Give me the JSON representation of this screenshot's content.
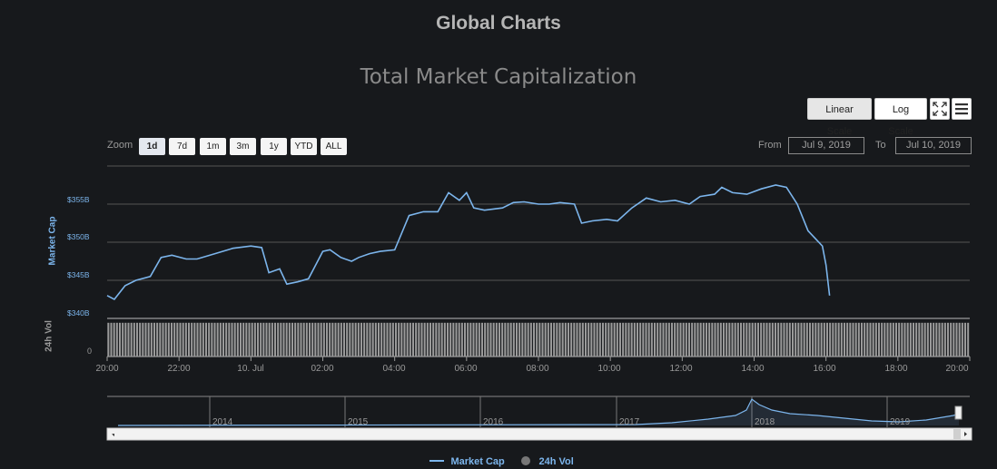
{
  "header": {
    "title": "Global Charts"
  },
  "chart_title": "Total Market Capitalization",
  "toolbar": {
    "linear_scale": "Linear Scale",
    "log_scale": "Log Scale",
    "fullscreen_icon": "fullscreen-icon",
    "menu_icon": "hamburger-menu-icon"
  },
  "zoom": {
    "label": "Zoom",
    "buttons": [
      "1d",
      "7d",
      "1m",
      "3m",
      "1y",
      "YTD",
      "ALL"
    ],
    "selected": "1d"
  },
  "range": {
    "from_label": "From",
    "from_value": "Jul 9, 2019",
    "to_label": "To",
    "to_value": "Jul 10, 2019"
  },
  "navigator": {
    "years": [
      "2014",
      "2015",
      "2016",
      "2017",
      "2018",
      "2019"
    ]
  },
  "legend": {
    "market_cap": "Market Cap",
    "vol": "24h Vol"
  },
  "colors": {
    "line": "#7cb5ec",
    "volume": "#9a9a9a",
    "background": "#17191c"
  },
  "chart_data": {
    "type": "line",
    "title": "Total Market Capitalization",
    "ylabel": "Market Cap",
    "ytick_labels": [
      "$340B",
      "$345B",
      "$350B",
      "$355B"
    ],
    "yticks": [
      340,
      345,
      350,
      355
    ],
    "ylim": [
      340,
      360
    ],
    "xtick_labels": [
      "20:00",
      "22:00",
      "10. Jul",
      "02:00",
      "04:00",
      "06:00",
      "08:00",
      "10:00",
      "12:00",
      "14:00",
      "16:00",
      "18:00",
      "20:00"
    ],
    "xticks": [
      0,
      2,
      4,
      6,
      8,
      10,
      12,
      14,
      16,
      18,
      20,
      22,
      24
    ],
    "x_unit": "hours since 20:00 Jul 9",
    "grid": true,
    "legend_position": "bottom-center",
    "series": [
      {
        "name": "Market Cap",
        "x": [
          0,
          0.2,
          0.5,
          0.8,
          1.2,
          1.5,
          1.8,
          2.2,
          2.5,
          3.0,
          3.5,
          4.0,
          4.3,
          4.5,
          4.8,
          5.0,
          5.3,
          5.6,
          5.8,
          6.0,
          6.2,
          6.5,
          6.8,
          7.0,
          7.3,
          7.6,
          8.0,
          8.4,
          8.8,
          9.2,
          9.5,
          9.8,
          10.0,
          10.2,
          10.5,
          11.0,
          11.3,
          11.6,
          12.0,
          12.3,
          12.6,
          13.0,
          13.2,
          13.5,
          13.9,
          14.2,
          14.6,
          15.0,
          15.4,
          15.8,
          16.2,
          16.5,
          16.9,
          17.1,
          17.4,
          17.8,
          18.2,
          18.6,
          18.9,
          19.2,
          19.5,
          19.7,
          19.9,
          20.0,
          20.1
        ],
        "values": [
          343.0,
          342.5,
          344.3,
          345.0,
          345.5,
          348.0,
          348.3,
          347.8,
          347.8,
          348.5,
          349.2,
          349.5,
          349.3,
          346.0,
          346.5,
          344.5,
          344.8,
          345.2,
          347.0,
          348.8,
          349.0,
          348.0,
          347.5,
          348.0,
          348.5,
          348.8,
          349.0,
          353.5,
          354.0,
          354.0,
          356.5,
          355.5,
          356.5,
          354.5,
          354.2,
          354.5,
          355.2,
          355.3,
          355.0,
          355.0,
          355.2,
          355.0,
          352.5,
          352.8,
          353.0,
          352.8,
          354.5,
          355.8,
          355.3,
          355.5,
          355.0,
          356.0,
          356.3,
          357.2,
          356.5,
          356.3,
          357.0,
          357.5,
          357.2,
          355.0,
          351.5,
          350.5,
          349.5,
          347.0,
          343.0
        ]
      },
      {
        "name": "24h Vol",
        "type": "column",
        "count": 300,
        "relative_level": 0.93
      }
    ]
  }
}
